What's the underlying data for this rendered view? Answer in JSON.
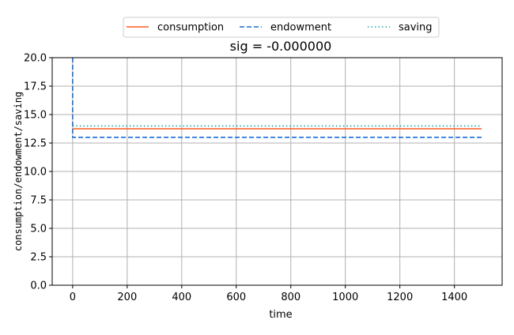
{
  "chart_data": {
    "type": "line",
    "title": "sig = -0.000000",
    "xlabel": "time",
    "ylabel": "consumption/endowment/saving",
    "xlim": [
      -75,
      1575
    ],
    "ylim": [
      0,
      20
    ],
    "xticks": [
      0,
      200,
      400,
      600,
      800,
      1000,
      1200,
      1400
    ],
    "yticks": [
      0.0,
      2.5,
      5.0,
      7.5,
      10.0,
      12.5,
      15.0,
      17.5,
      20.0
    ],
    "xtick_labels": [
      "0",
      "200",
      "400",
      "600",
      "800",
      "1000",
      "1200",
      "1400"
    ],
    "ytick_labels": [
      "0.0",
      "2.5",
      "5.0",
      "7.5",
      "10.0",
      "12.5",
      "15.0",
      "17.5",
      "20.0"
    ],
    "grid": true,
    "legend_position": "top-center",
    "series": [
      {
        "name": "consumption",
        "color": "#ff5a1f",
        "style": "solid",
        "x": [
          0,
          1500
        ],
        "y": [
          13.75,
          13.75
        ]
      },
      {
        "name": "endowment",
        "color": "#1a6cd6",
        "style": "dashed",
        "x": [
          0,
          0,
          1500
        ],
        "y": [
          20.0,
          13.0,
          13.0
        ]
      },
      {
        "name": "saving",
        "color": "#17a3a3",
        "style": "dotted",
        "x": [
          0,
          1500
        ],
        "y": [
          14.0,
          14.0
        ]
      }
    ]
  }
}
